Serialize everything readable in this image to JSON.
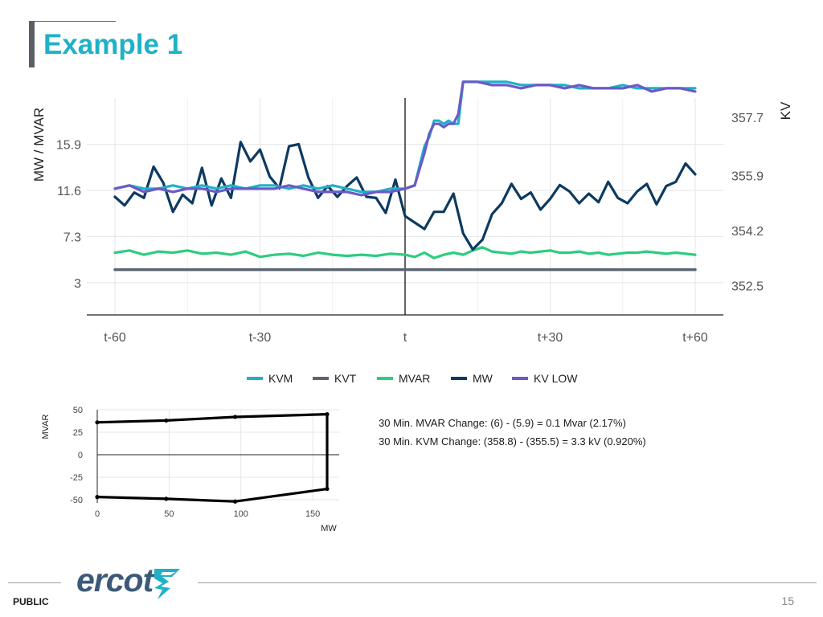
{
  "slide": {
    "title": "Example 1",
    "page_number": "15",
    "classification": "PUBLIC",
    "logo_text": "ercot",
    "logo_icon": "ercot-bolt-icon"
  },
  "stats": {
    "mvar_change": "30 Min. MVAR Change: (6) - (5.9) = 0.1 Mvar (2.17%)",
    "kvm_change": "30 Min. KVM Change: (358.8) - (355.5) = 3.3 kV (0.920%)"
  },
  "chart_data": [
    {
      "type": "line",
      "title": "",
      "xlabel": "",
      "ylabel": "MW / MVAR",
      "y2label": "KV",
      "x_ticks": [
        "t-60",
        "t-30",
        "t",
        "t+30",
        "t+60"
      ],
      "x_tick_values": [
        -60,
        -30,
        0,
        30,
        60
      ],
      "xlim": [
        -60,
        60
      ],
      "y_ticks": [
        "3",
        "7.3",
        "11.6",
        "15.9"
      ],
      "y_tick_values": [
        3,
        7.3,
        11.6,
        15.9
      ],
      "ylim": [
        0,
        20.2
      ],
      "y2_ticks": [
        "352.5",
        "354.2",
        "355.9",
        "357.7"
      ],
      "y2_tick_values": [
        352.5,
        354.2,
        355.9,
        357.7
      ],
      "y2lim": [
        351.6,
        358.3
      ],
      "vline_x": 0,
      "grid": true,
      "legend_position": "bottom",
      "series": [
        {
          "name": "KVM",
          "axis": "right",
          "color": "#1fb1c7",
          "x": [
            -60,
            -57,
            -54,
            -51,
            -48,
            -45,
            -42,
            -39,
            -36,
            -33,
            -30,
            -27,
            -24,
            -21,
            -18,
            -15,
            -12,
            -9,
            -6,
            -3,
            0,
            2,
            3,
            4,
            5,
            6,
            7,
            8,
            9,
            10,
            11,
            12,
            15,
            18,
            21,
            24,
            27,
            30,
            33,
            36,
            39,
            42,
            45,
            48,
            51,
            54,
            57,
            60
          ],
          "values": [
            355.5,
            355.6,
            355.5,
            355.5,
            355.6,
            355.5,
            355.6,
            355.5,
            355.6,
            355.5,
            355.6,
            355.6,
            355.5,
            355.6,
            355.5,
            355.6,
            355.5,
            355.4,
            355.4,
            355.5,
            355.5,
            355.6,
            356.2,
            356.8,
            357.1,
            357.6,
            357.6,
            357.5,
            357.6,
            357.5,
            357.5,
            358.8,
            358.8,
            358.8,
            358.8,
            358.7,
            358.7,
            358.7,
            358.7,
            358.6,
            358.6,
            358.6,
            358.7,
            358.6,
            358.6,
            358.6,
            358.6,
            358.6
          ]
        },
        {
          "name": "KVT",
          "axis": "right",
          "color": "#5a6570",
          "x": [
            -60,
            60
          ],
          "values": [
            353.0,
            353.0
          ]
        },
        {
          "name": "MVAR",
          "axis": "left",
          "color": "#2ecc7f",
          "x": [
            -60,
            -57,
            -54,
            -51,
            -48,
            -45,
            -42,
            -39,
            -36,
            -33,
            -30,
            -27,
            -24,
            -21,
            -18,
            -15,
            -12,
            -9,
            -6,
            -3,
            0,
            2,
            4,
            6,
            8,
            10,
            12,
            14,
            16,
            18,
            20,
            22,
            24,
            26,
            28,
            30,
            32,
            34,
            36,
            38,
            40,
            42,
            44,
            46,
            48,
            50,
            52,
            54,
            56,
            58,
            60
          ],
          "values": [
            5.8,
            6.0,
            5.6,
            5.9,
            5.8,
            6.0,
            5.7,
            5.8,
            5.6,
            5.9,
            5.4,
            5.6,
            5.7,
            5.5,
            5.8,
            5.6,
            5.5,
            5.6,
            5.5,
            5.7,
            5.6,
            5.4,
            5.8,
            5.3,
            5.6,
            5.8,
            5.6,
            6.0,
            6.3,
            5.9,
            5.8,
            5.7,
            5.9,
            5.8,
            5.9,
            6.0,
            5.8,
            5.8,
            5.9,
            5.7,
            5.8,
            5.6,
            5.7,
            5.8,
            5.8,
            5.9,
            5.8,
            5.7,
            5.8,
            5.7,
            5.6
          ]
        },
        {
          "name": "MW",
          "axis": "left",
          "color": "#0d3a60",
          "x": [
            -60,
            -58,
            -56,
            -54,
            -52,
            -50,
            -48,
            -46,
            -44,
            -42,
            -40,
            -38,
            -36,
            -34,
            -32,
            -30,
            -28,
            -26,
            -24,
            -22,
            -20,
            -18,
            -16,
            -14,
            -12,
            -10,
            -8,
            -6,
            -4,
            -2,
            0,
            2,
            4,
            6,
            8,
            10,
            12,
            14,
            16,
            18,
            20,
            22,
            24,
            26,
            28,
            30,
            32,
            34,
            36,
            38,
            40,
            42,
            44,
            46,
            48,
            50,
            52,
            54,
            56,
            58,
            60
          ],
          "values": [
            11.0,
            10.2,
            11.4,
            10.9,
            13.8,
            12.3,
            9.6,
            11.2,
            10.4,
            13.7,
            10.2,
            12.7,
            10.9,
            16.1,
            14.3,
            15.4,
            12.9,
            11.8,
            15.7,
            15.9,
            12.8,
            10.9,
            12.0,
            11.0,
            12.0,
            12.8,
            11.0,
            10.9,
            9.5,
            12.6,
            9.2,
            8.6,
            8.0,
            9.6,
            9.6,
            11.3,
            7.6,
            6.1,
            7.0,
            9.4,
            10.4,
            12.2,
            10.8,
            11.4,
            9.8,
            10.8,
            12.1,
            11.5,
            10.4,
            11.3,
            10.5,
            12.4,
            10.9,
            10.4,
            11.5,
            12.2,
            10.3,
            12.0,
            12.4,
            14.1,
            13.1
          ]
        },
        {
          "name": "KV LOW",
          "axis": "right",
          "color": "#6b5ac8",
          "x": [
            -60,
            -57,
            -54,
            -51,
            -48,
            -45,
            -42,
            -39,
            -36,
            -33,
            -30,
            -27,
            -24,
            -21,
            -18,
            -15,
            -12,
            -9,
            -6,
            -3,
            0,
            2,
            3,
            4,
            5,
            6,
            7,
            8,
            9,
            10,
            11,
            12,
            15,
            18,
            21,
            24,
            27,
            30,
            33,
            36,
            39,
            42,
            45,
            48,
            51,
            54,
            57,
            60
          ],
          "values": [
            355.5,
            355.6,
            355.4,
            355.5,
            355.4,
            355.5,
            355.5,
            355.4,
            355.5,
            355.5,
            355.5,
            355.5,
            355.6,
            355.5,
            355.4,
            355.4,
            355.4,
            355.3,
            355.4,
            355.4,
            355.5,
            355.6,
            356.1,
            356.6,
            357.2,
            357.5,
            357.5,
            357.4,
            357.5,
            357.5,
            357.8,
            358.8,
            358.8,
            358.7,
            358.7,
            358.6,
            358.7,
            358.7,
            358.6,
            358.7,
            358.6,
            358.6,
            358.6,
            358.7,
            358.5,
            358.6,
            358.6,
            358.5
          ]
        }
      ]
    },
    {
      "type": "line",
      "title": "",
      "xlabel": "MW",
      "ylabel": "MVAR",
      "x_ticks": [
        "0",
        "50",
        "100",
        "150"
      ],
      "x_tick_values": [
        0,
        50,
        100,
        150
      ],
      "xlim": [
        0,
        168
      ],
      "y_ticks": [
        "50",
        "25",
        "0",
        "-25",
        "-50"
      ],
      "y_tick_values": [
        50,
        25,
        0,
        -25,
        -50
      ],
      "ylim": [
        -50,
        50
      ],
      "grid": true,
      "series": [
        {
          "name": "",
          "color": "#000000",
          "x": [
            0,
            48,
            96,
            160,
            160,
            160,
            96,
            48,
            0
          ],
          "values": [
            36,
            38,
            42,
            45,
            0,
            -38,
            -52,
            -49,
            -47
          ],
          "markers": [
            0,
            48,
            96,
            160,
            160,
            96,
            48,
            0
          ],
          "marker_values": [
            36,
            38,
            42,
            45,
            -38,
            -52,
            -49,
            -47
          ]
        }
      ]
    }
  ]
}
